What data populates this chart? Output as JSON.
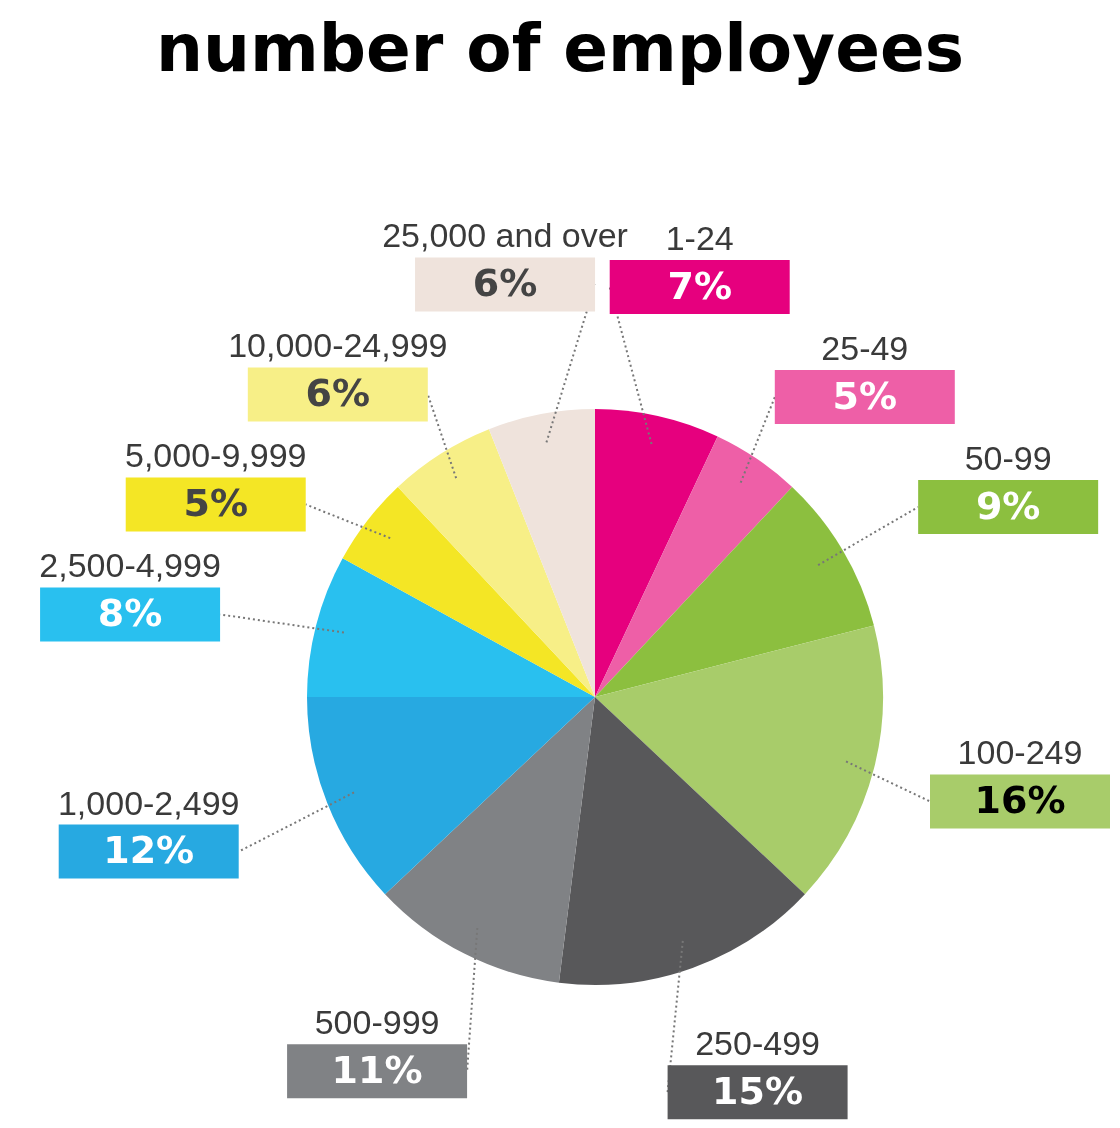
{
  "chart_data": {
    "type": "pie",
    "title": "number of employees",
    "categories": [
      "1-24",
      "25-49",
      "50-99",
      "100-249",
      "250-499",
      "500-999",
      "1,000-2,499",
      "2,500-4,999",
      "5,000-9,999",
      "10,000-24,999",
      "25,000 and over"
    ],
    "values": [
      7,
      5,
      9,
      16,
      15,
      11,
      12,
      8,
      5,
      6,
      6
    ],
    "value_labels": [
      "7%",
      "5%",
      "9%",
      "16%",
      "15%",
      "11%",
      "12%",
      "8%",
      "5%",
      "6%",
      "6%"
    ],
    "colors": [
      "#e6007e",
      "#ee5fa7",
      "#8cbf3f",
      "#a8cc6a",
      "#58585a",
      "#808285",
      "#27a9e1",
      "#29c0ef",
      "#f4e625",
      "#f7ef87",
      "#efe3dc"
    ],
    "legend": false
  }
}
